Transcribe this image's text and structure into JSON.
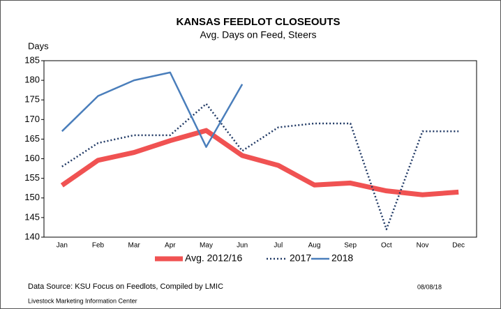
{
  "chart_data": {
    "type": "line",
    "title": "KANSAS FEEDLOT CLOSEOUTS",
    "subtitle": "Avg. Days on Feed, Steers",
    "y_label": "Days",
    "categories": [
      "Jan",
      "Feb",
      "Mar",
      "Apr",
      "May",
      "Jun",
      "Jul",
      "Aug",
      "Sep",
      "Oct",
      "Nov",
      "Dec"
    ],
    "series": [
      {
        "name": "Avg. 2012/16",
        "color": "#f05252",
        "line_style": "thick",
        "values": [
          153.2,
          159.6,
          161.6,
          164.6,
          167.2,
          160.8,
          158.3,
          153.3,
          153.8,
          151.8,
          150.8,
          151.5
        ]
      },
      {
        "name": "2017",
        "color": "#1f3864",
        "line_style": "dotted",
        "values": [
          158,
          164,
          166,
          166,
          174,
          162,
          168,
          169,
          169,
          142,
          167,
          167
        ]
      },
      {
        "name": "2018",
        "color": "#4a7ebb",
        "line_style": "solid",
        "values": [
          167,
          176,
          180,
          182,
          163,
          179,
          null,
          null,
          null,
          null,
          null,
          null
        ]
      }
    ],
    "ylim": [
      140,
      185
    ],
    "yticks": [
      140,
      145,
      150,
      155,
      160,
      165,
      170,
      175,
      180,
      185
    ],
    "grid": false,
    "legend": "bottom",
    "source": "Data Source:  KSU Focus on Feedlots, Compiled by LMIC",
    "credit": "Livestock Marketing Information Center",
    "date": "08/08/18"
  }
}
